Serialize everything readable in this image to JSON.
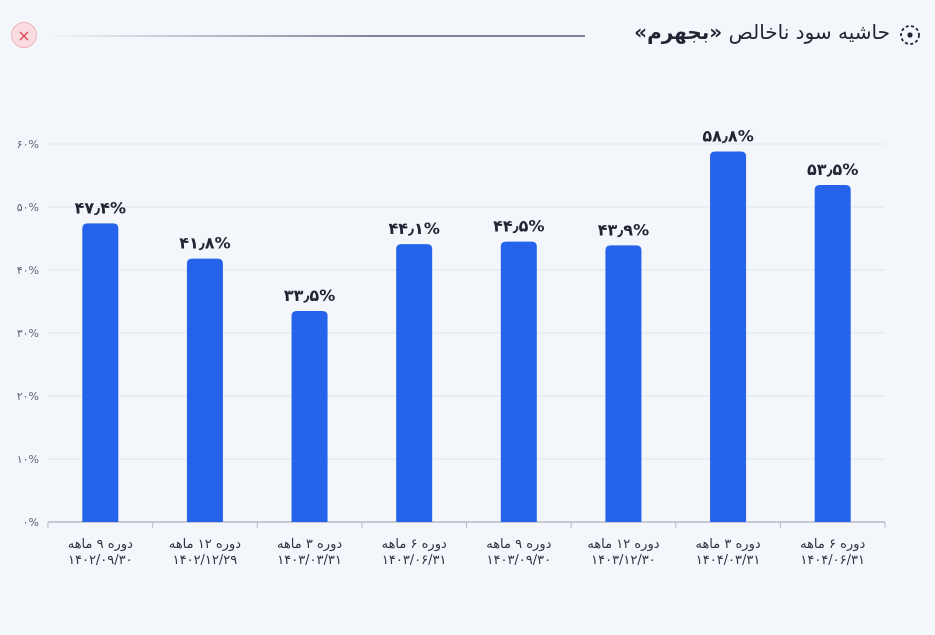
{
  "header": {
    "title_prefix": "حاشیه سود ناخالص ",
    "title_brand": "«بجهرم»",
    "close_symbol": "×"
  },
  "colors": {
    "bar": "#2563eb",
    "grid": "#dfe4ec",
    "axis": "#b6bcc6"
  },
  "icons": {
    "title": "target-icon",
    "close": "close-icon"
  },
  "chart_data": {
    "type": "bar",
    "title": "حاشیه سود ناخالص «بجهرم»",
    "xlabel": "",
    "ylabel": "",
    "ylim": [
      0,
      60
    ],
    "grid": true,
    "yticks": [
      0,
      10,
      20,
      30,
      40,
      50,
      60
    ],
    "ytick_labels": [
      "۰%",
      "۱۰%",
      "۲۰%",
      "۳۰%",
      "۴۰%",
      "۵۰%",
      "۶۰%"
    ],
    "categories": [
      [
        "دوره ۹ ماهه",
        "۱۴۰۲/۰۹/۳۰"
      ],
      [
        "دوره ۱۲ ماهه",
        "۱۴۰۲/۱۲/۲۹"
      ],
      [
        "دوره ۳ ماهه",
        "۱۴۰۳/۰۳/۳۱"
      ],
      [
        "دوره ۶ ماهه",
        "۱۴۰۳/۰۶/۳۱"
      ],
      [
        "دوره ۹ ماهه",
        "۱۴۰۳/۰۹/۳۰"
      ],
      [
        "دوره ۱۲ ماهه",
        "۱۴۰۳/۱۲/۳۰"
      ],
      [
        "دوره ۳ ماهه",
        "۱۴۰۴/۰۳/۳۱"
      ],
      [
        "دوره ۶ ماهه",
        "۱۴۰۴/۰۶/۳۱"
      ]
    ],
    "values": [
      47.4,
      41.8,
      33.5,
      44.1,
      44.5,
      43.9,
      58.8,
      53.5
    ],
    "value_labels": [
      "۴۷٫۴%",
      "۴۱٫۸%",
      "۳۳٫۵%",
      "۴۴٫۱%",
      "۴۴٫۵%",
      "۴۳٫۹%",
      "۵۸٫۸%",
      "۵۳٫۵%"
    ]
  }
}
